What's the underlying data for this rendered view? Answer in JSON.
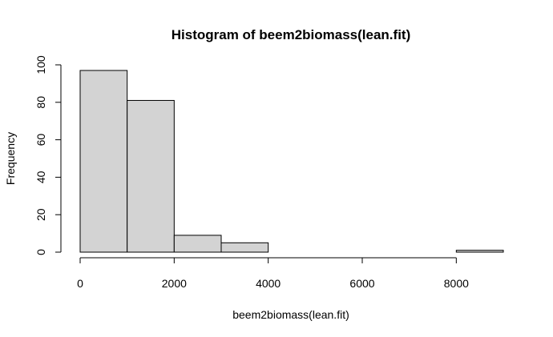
{
  "chart_data": {
    "type": "bar",
    "title": "Histogram of beem2biomass(lean.fit)",
    "xlabel": "beem2biomass(lean.fit)",
    "ylabel": "Frequency",
    "bins": [
      {
        "from": 0,
        "to": 1000,
        "count": 97
      },
      {
        "from": 1000,
        "to": 2000,
        "count": 81
      },
      {
        "from": 2000,
        "to": 3000,
        "count": 9
      },
      {
        "from": 3000,
        "to": 4000,
        "count": 5
      },
      {
        "from": 4000,
        "to": 5000,
        "count": 0
      },
      {
        "from": 5000,
        "to": 6000,
        "count": 0
      },
      {
        "from": 6000,
        "to": 7000,
        "count": 0
      },
      {
        "from": 7000,
        "to": 8000,
        "count": 0
      },
      {
        "from": 8000,
        "to": 9000,
        "count": 1
      }
    ],
    "x_ticks": [
      0,
      2000,
      4000,
      6000,
      8000
    ],
    "y_ticks": [
      0,
      20,
      40,
      60,
      80,
      100
    ],
    "xlim": [
      0,
      9000
    ],
    "ylim": [
      0,
      100
    ],
    "bar_fill": "#d3d3d3",
    "bar_stroke": "#000000",
    "grid": false,
    "legend": "none"
  }
}
